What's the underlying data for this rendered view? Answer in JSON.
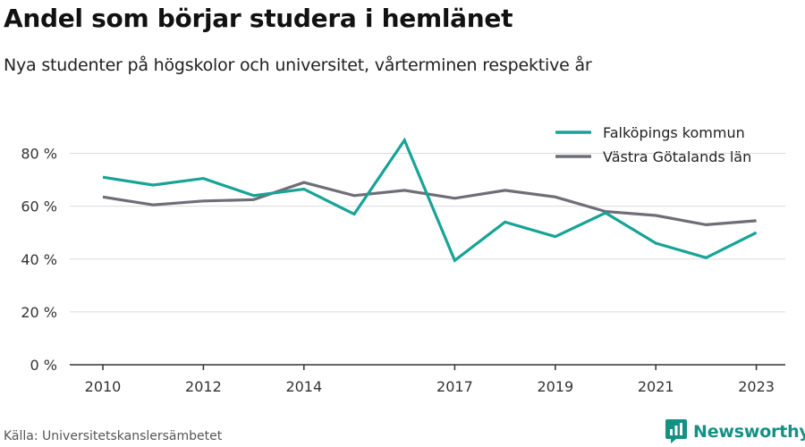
{
  "header": {
    "title": "Andel som börjar studera i hemlänet",
    "subtitle": "Nya studenter på högskolor och universitet, vårterminen respektive år"
  },
  "footer": {
    "source": "Källa: Universitetskanslersämbetet",
    "brand": "Newsworthy",
    "brand_icon": "bar-chart-logo-icon"
  },
  "colors": {
    "falkoping": "#17a396",
    "vastra_gotaland": "#6e6e78",
    "grid": "#dcdcdc",
    "axis": "#333333",
    "brand": "#159184"
  },
  "chart_data": {
    "type": "line",
    "title": "Andel som börjar studera i hemlänet",
    "subtitle": "Nya studenter på högskolor och universitet, vårterminen respektive år",
    "x": [
      2010,
      2011,
      2012,
      2013,
      2014,
      2015,
      2016,
      2017,
      2018,
      2019,
      2020,
      2021,
      2022,
      2023
    ],
    "x_ticks": [
      2010,
      2012,
      2014,
      2017,
      2019,
      2021,
      2023
    ],
    "y_ticks": [
      0,
      20,
      40,
      60,
      80
    ],
    "y_tick_labels": [
      "0 %",
      "20 %",
      "40 %",
      "60 %",
      "80 %"
    ],
    "ylim": [
      0,
      90
    ],
    "grid": true,
    "legend_position": "top-right",
    "series": [
      {
        "name": "Falköpings kommun",
        "color": "#17a396",
        "values": [
          71,
          68,
          70.5,
          64,
          66.5,
          57,
          85,
          39.5,
          54,
          48.5,
          57.5,
          46,
          40.5,
          50
        ]
      },
      {
        "name": "Västra Götalands län",
        "color": "#6e6e78",
        "values": [
          63.5,
          60.5,
          62,
          62.5,
          69,
          64,
          66,
          63,
          66,
          63.5,
          58,
          56.5,
          53,
          54.5
        ]
      }
    ]
  }
}
